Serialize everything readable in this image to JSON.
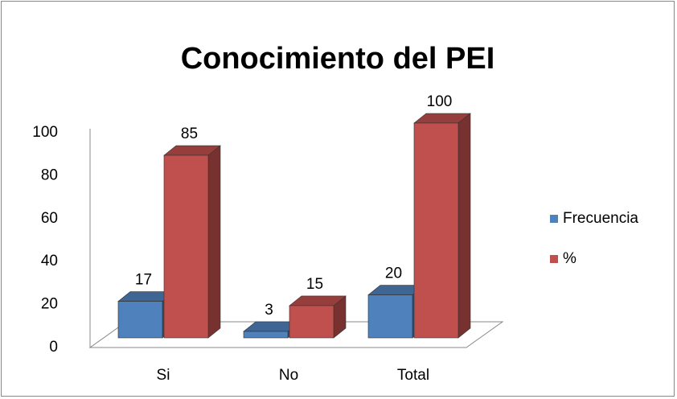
{
  "chart_data": {
    "type": "bar3d",
    "title": "Conocimiento del PEI",
    "categories": [
      "Si",
      "No",
      "Total"
    ],
    "series": [
      {
        "name": "Frecuencia",
        "color": "#4f81bd",
        "values": [
          17,
          3,
          20
        ]
      },
      {
        "name": "%",
        "color": "#c0504d",
        "values": [
          85,
          15,
          100
        ]
      }
    ],
    "ylim": [
      0,
      100
    ],
    "yticks": [
      0,
      20,
      40,
      60,
      80,
      100
    ],
    "legend": "right"
  }
}
